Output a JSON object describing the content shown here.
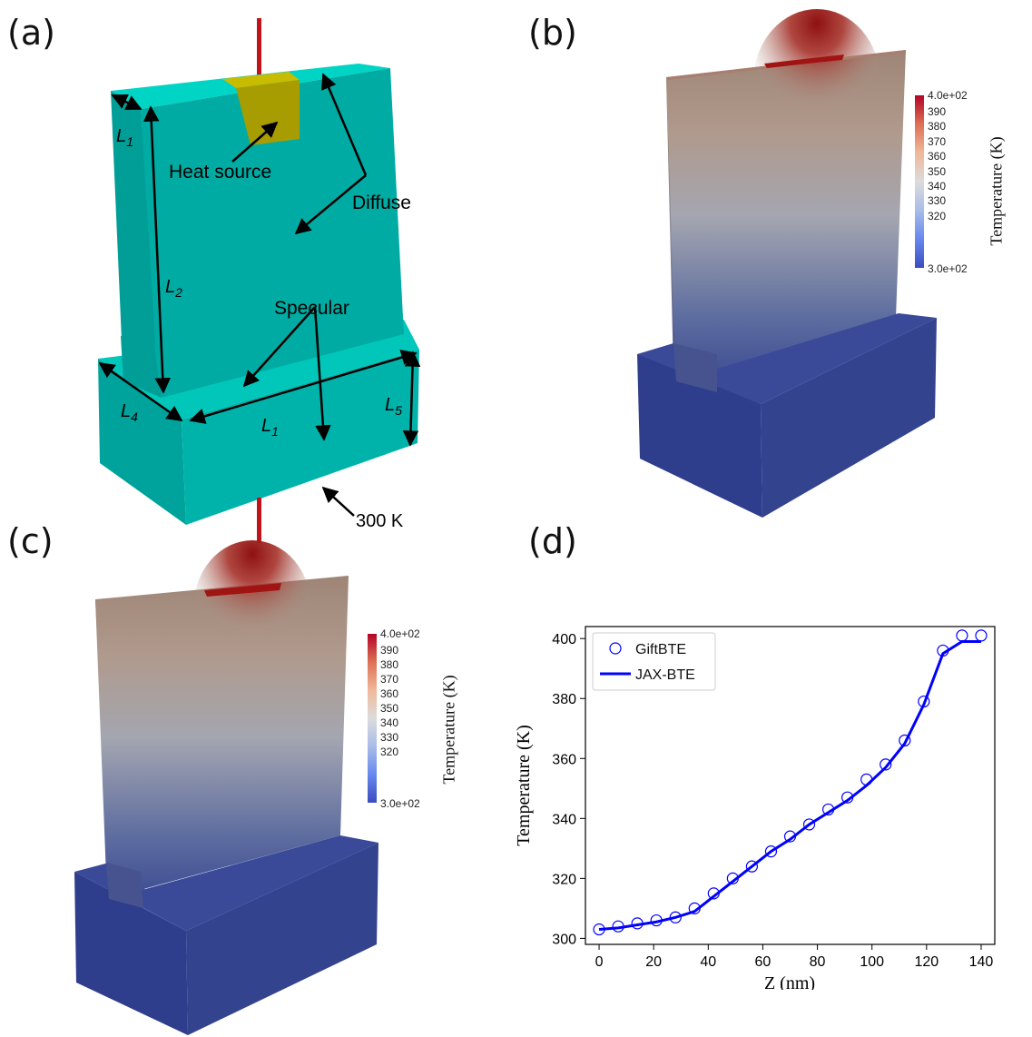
{
  "panels": {
    "a": {
      "label": "(a)",
      "labels": {
        "L1_side": "L",
        "L1_side_sub": "1",
        "L2": "L",
        "L2_sub": "2",
        "L4": "L",
        "L4_sub": "4",
        "L1_bottom": "L",
        "L1_bottom_sub": "1",
        "L5": "L",
        "L5_sub": "5"
      },
      "annotations": {
        "heat_source": "Heat source",
        "diffuse": "Diffuse",
        "specular": "Specular",
        "bottom_temp": "300 K"
      }
    },
    "b": {
      "label": "(b)"
    },
    "c": {
      "label": "(c)"
    },
    "d": {
      "label": "(d)"
    }
  },
  "colorbar": {
    "title": "Temperature (K)",
    "max_label": "4.0e+02",
    "min_label": "3.0e+02",
    "ticks": [
      "390",
      "380",
      "370",
      "360",
      "350",
      "340",
      "330",
      "320"
    ]
  },
  "colors": {
    "cyan_face": "#00b3aa",
    "cyan_top": "#00d2c3",
    "heat_source": "#bdb000",
    "rod": "#c0141a",
    "cold": "#2e3f8f",
    "hot": "#9a1414",
    "line": "#0000ff"
  },
  "chart_data": {
    "type": "line",
    "xlabel": "Z (nm)",
    "ylabel": "Temperature (K)",
    "xlim": [
      -5,
      145
    ],
    "ylim": [
      298,
      404
    ],
    "xticks": [
      0,
      20,
      40,
      60,
      80,
      100,
      120,
      140
    ],
    "yticks": [
      300,
      320,
      340,
      360,
      380,
      400
    ],
    "legend_position": "top-left",
    "grid": false,
    "series": [
      {
        "name": "GiftBTE",
        "marker": "open-circle",
        "x": [
          0,
          7,
          14,
          21,
          28,
          35,
          42,
          49,
          56,
          63,
          70,
          77,
          84,
          91,
          98,
          105,
          112,
          119,
          126,
          133,
          140
        ],
        "y": [
          303,
          304,
          305,
          306,
          307,
          310,
          315,
          320,
          324,
          329,
          334,
          338,
          343,
          347,
          353,
          358,
          366,
          379,
          396,
          401,
          401
        ]
      },
      {
        "name": "JAX-BTE",
        "marker": "line",
        "x": [
          0,
          7,
          14,
          21,
          28,
          35,
          42,
          49,
          56,
          63,
          70,
          77,
          84,
          91,
          98,
          105,
          112,
          119,
          126,
          133,
          140
        ],
        "y": [
          303,
          303.5,
          304.5,
          305.5,
          307,
          309,
          314,
          319,
          324,
          329,
          333,
          338,
          342,
          346,
          351,
          357,
          365,
          378,
          395,
          399,
          399
        ]
      }
    ]
  }
}
